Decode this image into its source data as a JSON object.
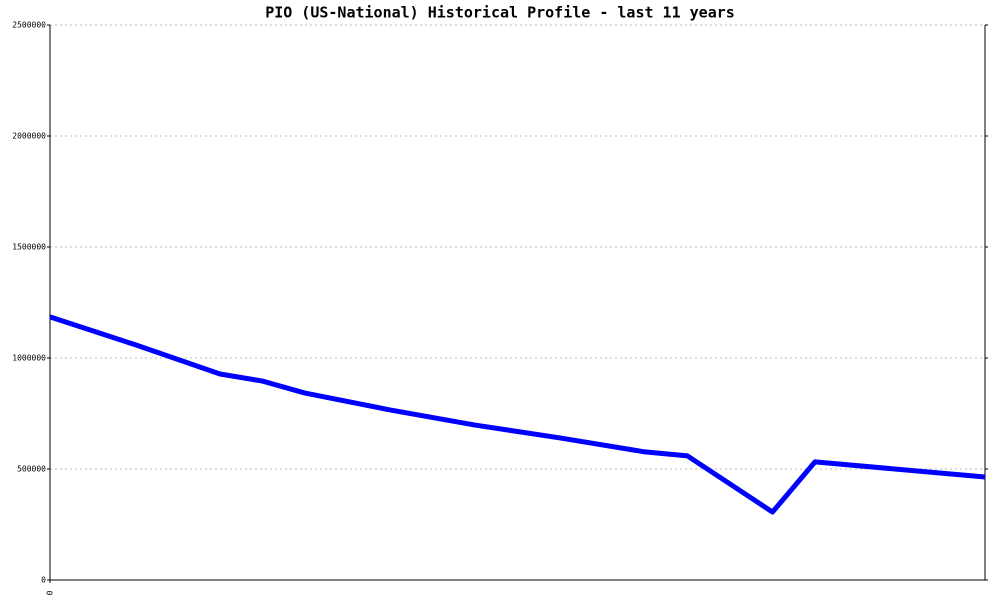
{
  "chart_data": {
    "type": "line",
    "title": "PIO (US-National) Historical Profile - last 11 years",
    "x": [
      0,
      1,
      2,
      2.5,
      3,
      4,
      5,
      6,
      7,
      7.5,
      8.5,
      9,
      11
    ],
    "values": [
      1185000,
      1060000,
      928000,
      896000,
      842000,
      766000,
      698000,
      640000,
      577000,
      559000,
      306000,
      532000,
      464000
    ],
    "color": "#0000ff",
    "xlim": [
      0,
      11
    ],
    "xticks": [
      0
    ],
    "ylim": [
      0,
      2500000
    ],
    "yticks": [
      0,
      500000,
      1000000,
      1500000,
      2000000,
      2500000
    ],
    "grid": true
  }
}
